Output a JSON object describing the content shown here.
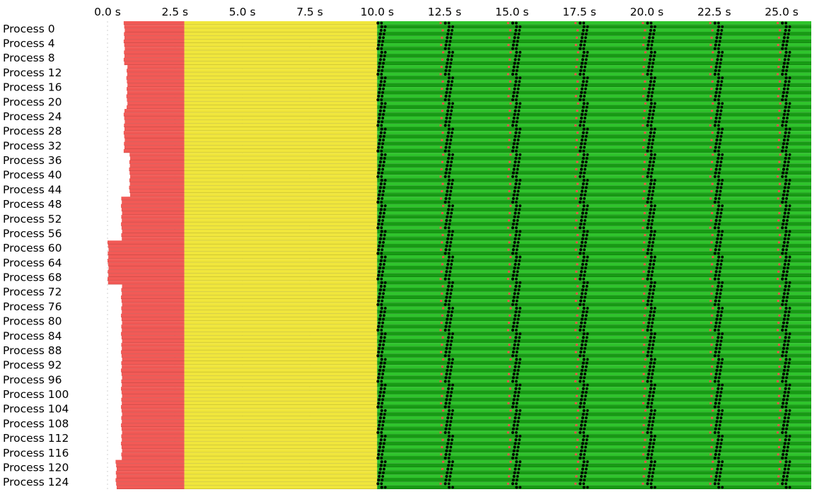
{
  "chart_data": {
    "type": "timeline",
    "x_unit": "s",
    "x_ticks": [
      0,
      2.5,
      5,
      7.5,
      10,
      12.5,
      15,
      17.5,
      20,
      22.5,
      25
    ],
    "x_tick_labels": [
      "0.0 s",
      "2.5 s",
      "5.0 s",
      "7.5 s",
      "10.0 s",
      "12.5 s",
      "15.0 s",
      "17.5 s",
      "20.0 s",
      "22.5 s",
      "25.0 s"
    ],
    "xlim": [
      0,
      26.1
    ],
    "process_count": 128,
    "row_labels": [
      "Process 0",
      "Process 4",
      "Process 8",
      "Process 12",
      "Process 16",
      "Process 20",
      "Process 24",
      "Process 28",
      "Process 32",
      "Process 36",
      "Process 40",
      "Process 44",
      "Process 48",
      "Process 52",
      "Process 56",
      "Process 60",
      "Process 64",
      "Process 68",
      "Process 72",
      "Process 76",
      "Process 80",
      "Process 84",
      "Process 88",
      "Process 92",
      "Process 96",
      "Process 100",
      "Process 104",
      "Process 108",
      "Process 112",
      "Process 116",
      "Process 120",
      "Process 124"
    ],
    "phases": {
      "red_start_by_group": [
        0.6,
        0.6,
        0.6,
        0.7,
        0.7,
        0.7,
        0.6,
        0.6,
        0.6,
        0.8,
        0.8,
        0.8,
        0.5,
        0.5,
        0.5,
        0.0,
        0.0,
        0.0,
        0.5,
        0.5,
        0.5,
        0.5,
        0.5,
        0.5,
        0.5,
        0.5,
        0.5,
        0.5,
        0.5,
        0.5,
        0.3,
        0.3
      ],
      "red_end": 2.85,
      "yellow_end": 10.0,
      "green_end": 26.1
    },
    "sync_points": [
      10.1,
      12.6,
      15.1,
      17.6,
      20.1,
      22.6,
      25.1
    ],
    "colors": {
      "red": "#f25a56",
      "yellow": "#f0e63c",
      "green": "#2fc42c",
      "green_dark": "#179a14",
      "sync": "#000000",
      "marker": "#ff4b4b",
      "grid": "#d0d0d0"
    }
  }
}
